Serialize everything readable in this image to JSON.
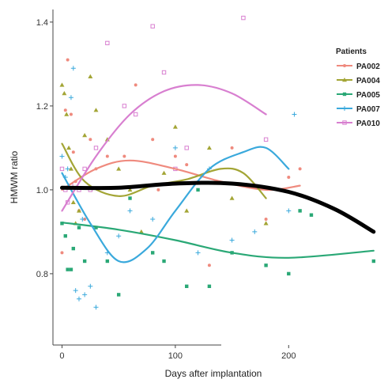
{
  "chart_data": {
    "type": "scatter",
    "title": "",
    "xlabel": "Days after implantation",
    "ylabel": "HMWM ratio",
    "xlim": [
      -8,
      280
    ],
    "ylim": [
      0.63,
      1.43
    ],
    "x_ticks": [
      0,
      100,
      200
    ],
    "x_tick_labels": [
      "0",
      "100",
      "200"
    ],
    "y_ticks": [
      0.8,
      1.0,
      1.2,
      1.4
    ],
    "y_tick_labels": [
      "0.8",
      "1.0",
      "1.2",
      "1.4"
    ],
    "grid": false,
    "legend": {
      "title": "Patients",
      "placement": "right"
    },
    "overall_fit": {
      "color": "#000000",
      "points": [
        [
          0,
          1.005
        ],
        [
          50,
          1.005
        ],
        [
          100,
          1.015
        ],
        [
          150,
          1.015
        ],
        [
          200,
          0.995
        ],
        [
          240,
          0.955
        ],
        [
          275,
          0.9
        ]
      ]
    },
    "series": [
      {
        "name": "PA002",
        "color": "#ef8a7e",
        "marker": "circle",
        "points": [
          [
            0,
            0.85
          ],
          [
            3,
            1.19
          ],
          [
            5,
            1.31
          ],
          [
            8,
            1.18
          ],
          [
            10,
            1.09
          ],
          [
            12,
            1.02
          ],
          [
            15,
            0.95
          ],
          [
            20,
            0.93
          ],
          [
            25,
            1.12
          ],
          [
            30,
            1.05
          ],
          [
            40,
            1.08
          ],
          [
            55,
            1.08
          ],
          [
            65,
            1.25
          ],
          [
            80,
            1.12
          ],
          [
            85,
            1.0
          ],
          [
            100,
            1.08
          ],
          [
            110,
            1.06
          ],
          [
            130,
            0.82
          ],
          [
            150,
            1.1
          ],
          [
            180,
            0.93
          ],
          [
            200,
            1.03
          ],
          [
            210,
            1.05
          ]
        ],
        "fit": [
          [
            0,
            1.0
          ],
          [
            30,
            1.05
          ],
          [
            60,
            1.07
          ],
          [
            100,
            1.05
          ],
          [
            140,
            1.02
          ],
          [
            180,
            1.0
          ],
          [
            210,
            1.01
          ]
        ]
      },
      {
        "name": "PA004",
        "color": "#a3a535",
        "marker": "triangle",
        "points": [
          [
            0,
            1.25
          ],
          [
            2,
            1.23
          ],
          [
            4,
            1.18
          ],
          [
            6,
            1.1
          ],
          [
            8,
            1.05
          ],
          [
            10,
            0.97
          ],
          [
            12,
            0.92
          ],
          [
            15,
            0.95
          ],
          [
            20,
            1.13
          ],
          [
            25,
            1.27
          ],
          [
            30,
            1.19
          ],
          [
            40,
            1.12
          ],
          [
            50,
            1.05
          ],
          [
            60,
            1.0
          ],
          [
            70,
            0.9
          ],
          [
            90,
            1.04
          ],
          [
            100,
            1.15
          ],
          [
            110,
            0.95
          ],
          [
            130,
            1.1
          ],
          [
            150,
            0.98
          ],
          [
            180,
            0.92
          ]
        ],
        "fit": [
          [
            0,
            1.11
          ],
          [
            20,
            1.02
          ],
          [
            50,
            0.985
          ],
          [
            80,
            1.01
          ],
          [
            110,
            1.025
          ],
          [
            140,
            1.05
          ],
          [
            160,
            1.04
          ],
          [
            180,
            0.98
          ]
        ]
      },
      {
        "name": "PA005",
        "color": "#2aa876",
        "marker": "square",
        "points": [
          [
            0,
            0.92
          ],
          [
            3,
            0.89
          ],
          [
            5,
            0.81
          ],
          [
            8,
            0.81
          ],
          [
            10,
            0.86
          ],
          [
            15,
            0.91
          ],
          [
            20,
            0.83
          ],
          [
            30,
            0.91
          ],
          [
            40,
            0.83
          ],
          [
            50,
            0.75
          ],
          [
            60,
            0.98
          ],
          [
            80,
            0.85
          ],
          [
            90,
            0.83
          ],
          [
            110,
            0.77
          ],
          [
            120,
            1.0
          ],
          [
            130,
            0.77
          ],
          [
            150,
            0.85
          ],
          [
            180,
            0.82
          ],
          [
            200,
            0.8
          ],
          [
            210,
            0.95
          ],
          [
            220,
            0.94
          ],
          [
            275,
            0.83
          ]
        ],
        "fit": [
          [
            0,
            0.922
          ],
          [
            50,
            0.905
          ],
          [
            100,
            0.88
          ],
          [
            150,
            0.85
          ],
          [
            200,
            0.838
          ],
          [
            275,
            0.855
          ]
        ]
      },
      {
        "name": "PA007",
        "color": "#3aa9dc",
        "marker": "plus",
        "points": [
          [
            0,
            1.08
          ],
          [
            3,
            1.03
          ],
          [
            5,
            1.05
          ],
          [
            8,
            1.22
          ],
          [
            10,
            1.29
          ],
          [
            12,
            0.76
          ],
          [
            15,
            0.74
          ],
          [
            18,
            0.93
          ],
          [
            20,
            0.75
          ],
          [
            25,
            0.77
          ],
          [
            30,
            0.72
          ],
          [
            40,
            0.85
          ],
          [
            50,
            0.89
          ],
          [
            60,
            0.95
          ],
          [
            80,
            0.93
          ],
          [
            100,
            1.1
          ],
          [
            120,
            0.85
          ],
          [
            130,
            1.05
          ],
          [
            150,
            0.88
          ],
          [
            170,
            0.9
          ],
          [
            200,
            0.95
          ],
          [
            205,
            1.18
          ]
        ],
        "fit": [
          [
            0,
            1.04
          ],
          [
            25,
            0.92
          ],
          [
            50,
            0.83
          ],
          [
            75,
            0.86
          ],
          [
            100,
            0.95
          ],
          [
            130,
            1.05
          ],
          [
            160,
            1.09
          ],
          [
            180,
            1.1
          ],
          [
            200,
            1.05
          ]
        ]
      },
      {
        "name": "PA010",
        "color": "#d87fd0",
        "marker": "square-open",
        "points": [
          [
            0,
            1.05
          ],
          [
            3,
            1.0
          ],
          [
            5,
            0.97
          ],
          [
            8,
            1.01
          ],
          [
            15,
            1.0
          ],
          [
            20,
            1.05
          ],
          [
            25,
            1.0
          ],
          [
            30,
            1.1
          ],
          [
            40,
            1.35
          ],
          [
            55,
            1.2
          ],
          [
            65,
            1.18
          ],
          [
            80,
            1.39
          ],
          [
            90,
            1.28
          ],
          [
            100,
            1.05
          ],
          [
            110,
            1.1
          ],
          [
            160,
            1.41
          ],
          [
            180,
            1.12
          ]
        ],
        "fit": [
          [
            0,
            0.95
          ],
          [
            30,
            1.08
          ],
          [
            60,
            1.18
          ],
          [
            90,
            1.235
          ],
          [
            120,
            1.25
          ],
          [
            150,
            1.23
          ],
          [
            180,
            1.18
          ]
        ]
      }
    ]
  }
}
